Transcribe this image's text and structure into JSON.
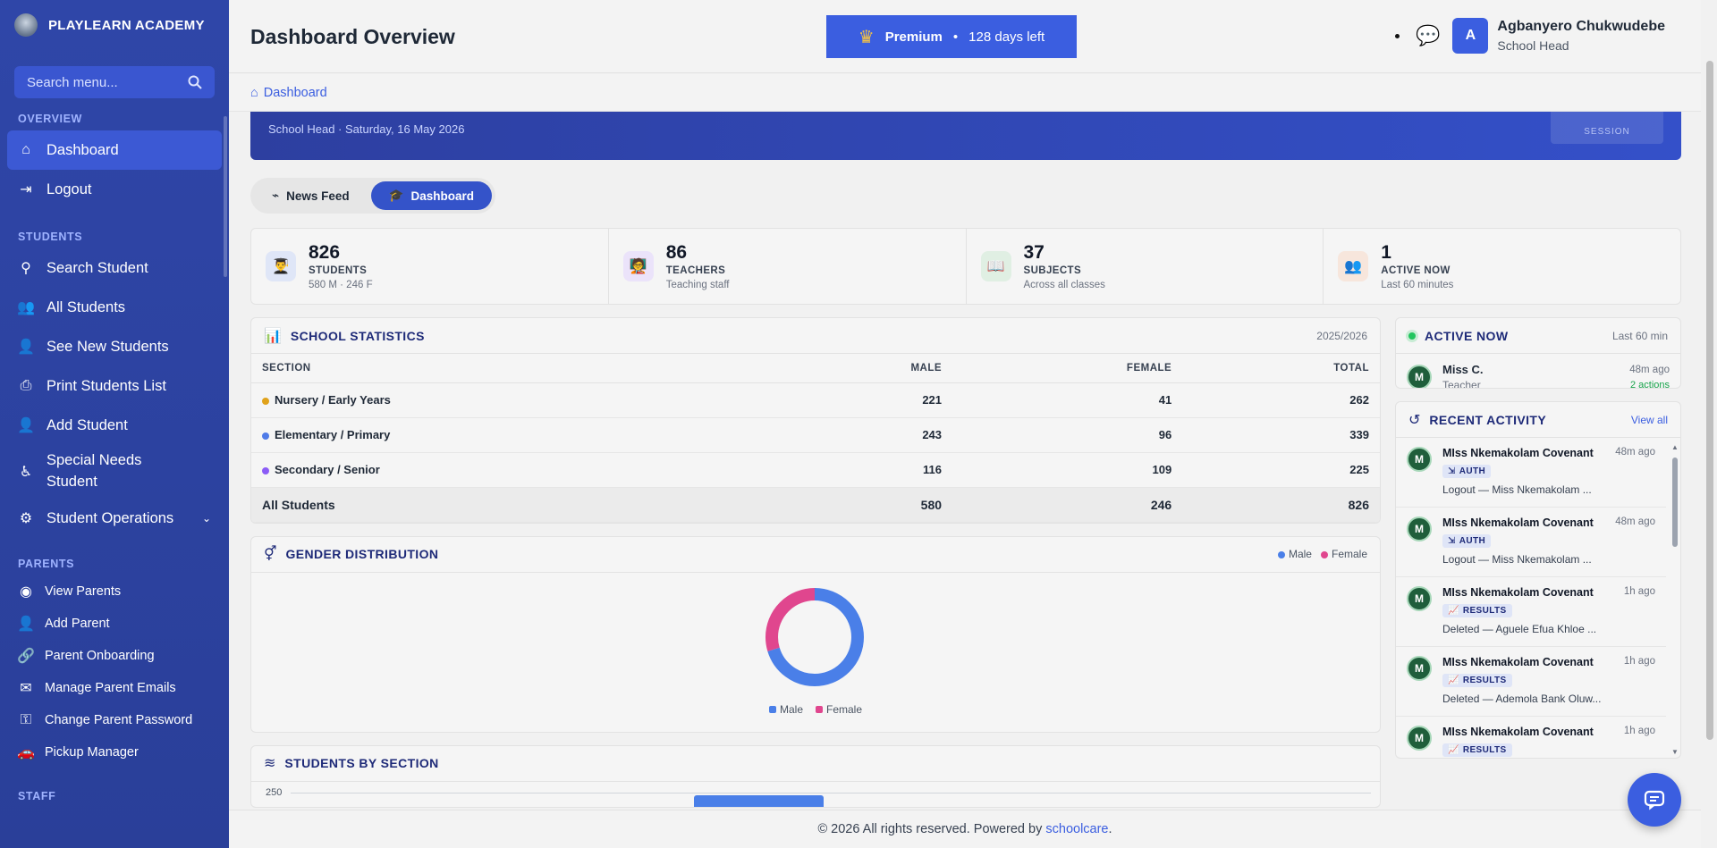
{
  "brand": {
    "name": "PLAYLEARN ACADEMY"
  },
  "sidebar": {
    "search_placeholder": "Search menu...",
    "sections": {
      "overview": "OVERVIEW",
      "students": "STUDENTS",
      "parents": "PARENTS",
      "staff": "STAFF"
    },
    "overview_items": [
      "Dashboard",
      "Logout"
    ],
    "student_items": [
      "Search Student",
      "All Students",
      "See New Students",
      "Print Students List",
      "Add Student",
      "Special Needs Student",
      "Student Operations"
    ],
    "parent_items": [
      "View Parents",
      "Add Parent",
      "Parent Onboarding",
      "Manage Parent Emails",
      "Change Parent Password",
      "Pickup Manager"
    ]
  },
  "header": {
    "title": "Dashboard Overview",
    "premium_label": "Premium",
    "premium_sep": "•",
    "premium_days": "128 days left",
    "user_initial": "A",
    "user_name": "Agbanyero Chukwudebe",
    "user_role": "School Head"
  },
  "breadcrumb": {
    "label": "Dashboard"
  },
  "welcome": {
    "subtitle": "School Head · Saturday, 16 May 2026",
    "session_label": "SESSION"
  },
  "tabs": [
    "News Feed",
    "Dashboard"
  ],
  "stats": [
    {
      "num": "826",
      "label": "STUDENTS",
      "sub": "580 M · 246 F"
    },
    {
      "num": "86",
      "label": "TEACHERS",
      "sub": "Teaching staff"
    },
    {
      "num": "37",
      "label": "SUBJECTS",
      "sub": "Across all classes"
    },
    {
      "num": "1",
      "label": "ACTIVE NOW",
      "sub": "Last 60 minutes"
    }
  ],
  "school_stats": {
    "title": "SCHOOL STATISTICS",
    "year": "2025/2026",
    "headers": [
      "SECTION",
      "MALE",
      "FEMALE",
      "TOTAL"
    ],
    "rows": [
      {
        "section": "Nursery / Early Years",
        "male": "221",
        "female": "41",
        "total": "262",
        "color": "#e0a21b"
      },
      {
        "section": "Elementary / Primary",
        "male": "243",
        "female": "96",
        "total": "339",
        "color": "#4f7be8"
      },
      {
        "section": "Secondary / Senior",
        "male": "116",
        "female": "109",
        "total": "225",
        "color": "#8b5cf6"
      }
    ],
    "total": {
      "section": "All Students",
      "male": "580",
      "female": "246",
      "total": "826"
    }
  },
  "gender": {
    "title": "GENDER DISTRIBUTION",
    "legend": [
      "Male",
      "Female"
    ],
    "colors": {
      "male": "#4a7fe8",
      "female": "#e0468e"
    }
  },
  "chart_data": {
    "type": "pie",
    "categories": [
      "Male",
      "Female"
    ],
    "values": [
      580,
      246
    ],
    "title": "GENDER DISTRIBUTION"
  },
  "sections_chart": {
    "title": "STUDENTS BY SECTION",
    "y_tick": "250"
  },
  "active_now": {
    "title": "ACTIVE NOW",
    "range": "Last 60 min",
    "user": {
      "initial": "M",
      "name": "Miss C.",
      "role": "Teacher",
      "time": "48m ago",
      "actions": "2 actions"
    }
  },
  "recent": {
    "title": "RECENT ACTIVITY",
    "view_all": "View all",
    "items": [
      {
        "initial": "M",
        "name": "MIss Nkemakolam Covenant",
        "time": "48m ago",
        "badge": "AUTH",
        "desc": "Logout — Miss Nkemakolam ..."
      },
      {
        "initial": "M",
        "name": "MIss Nkemakolam Covenant",
        "time": "48m ago",
        "badge": "AUTH",
        "desc": "Logout — Miss Nkemakolam ..."
      },
      {
        "initial": "M",
        "name": "MIss Nkemakolam Covenant",
        "time": "1h ago",
        "badge": "RESULTS",
        "desc": "Deleted — Aguele Efua Khloe ..."
      },
      {
        "initial": "M",
        "name": "MIss Nkemakolam Covenant",
        "time": "1h ago",
        "badge": "RESULTS",
        "desc": "Deleted — Ademola Bank Oluw..."
      },
      {
        "initial": "M",
        "name": "MIss Nkemakolam Covenant",
        "time": "1h ago",
        "badge": "RESULTS",
        "desc": ""
      }
    ]
  },
  "footer": {
    "text": "© 2026 All rights reserved. Powered by",
    "link": "schoolcare",
    "end": "."
  }
}
